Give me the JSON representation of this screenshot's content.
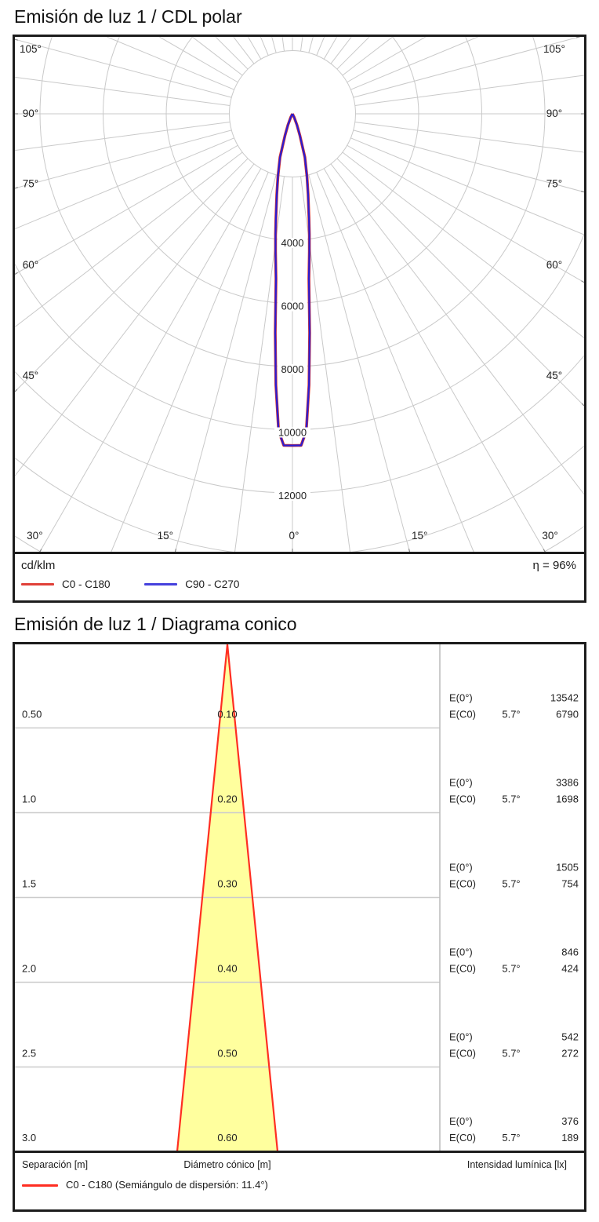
{
  "polar": {
    "title": "Emisión de luz 1 / CDL polar",
    "unit_label": "cd/klm",
    "efficiency": "η = 96%",
    "angle_ticks": [
      {
        "deg": 0,
        "label": "0°"
      },
      {
        "deg": 15,
        "label": "15°"
      },
      {
        "deg": 30,
        "label": "30°"
      },
      {
        "deg": 45,
        "label": "45°"
      },
      {
        "deg": 60,
        "label": "60°"
      },
      {
        "deg": 75,
        "label": "75°"
      },
      {
        "deg": 90,
        "label": "90°"
      },
      {
        "deg": 105,
        "label": "105°"
      }
    ],
    "ring_ticks": [
      {
        "value": 4000,
        "label": "4000"
      },
      {
        "value": 6000,
        "label": "6000"
      },
      {
        "value": 8000,
        "label": "8000"
      },
      {
        "value": 10000,
        "label": "10000"
      },
      {
        "value": 12000,
        "label": "12000"
      }
    ],
    "legend": [
      {
        "label": "C0 - C180",
        "color": "#e04038"
      },
      {
        "label": "C90 - C270",
        "color": "#4541dd"
      }
    ]
  },
  "cone": {
    "title": "Emisión de luz 1 / Diagrama conico",
    "footer": {
      "separation": "Separación [m]",
      "diameter": "Diámetro cónico [m]",
      "intensity": "Intensidad lumínica [lx]"
    },
    "legend_label": "C0 - C180 (Semiángulo de dispersión: 11.4°)",
    "legend_color": "#ff2e22",
    "e0_label": "E(0°)",
    "ec0_label": "E(C0)",
    "half_angle_label": "5.7°",
    "rows": [
      {
        "separation": "0.50",
        "diameter": "0.10",
        "e0": "13542",
        "ec0": "6790"
      },
      {
        "separation": "1.0",
        "diameter": "0.20",
        "e0": "3386",
        "ec0": "1698"
      },
      {
        "separation": "1.5",
        "diameter": "0.30",
        "e0": "1505",
        "ec0": "754"
      },
      {
        "separation": "2.0",
        "diameter": "0.40",
        "e0": "846",
        "ec0": "424"
      },
      {
        "separation": "2.5",
        "diameter": "0.50",
        "e0": "542",
        "ec0": "272"
      },
      {
        "separation": "3.0",
        "diameter": "0.60",
        "e0": "376",
        "ec0": "189"
      }
    ]
  },
  "chart_data": [
    {
      "type": "line",
      "polar": true,
      "title": "Emisión de luz 1 / CDL polar",
      "units": "cd/klm",
      "efficiency_percent": 96,
      "angle_axis_ticks_deg": [
        0,
        15,
        30,
        45,
        60,
        75,
        90,
        105
      ],
      "radial_axis_ticks": [
        2000,
        4000,
        6000,
        8000,
        10000,
        12000
      ],
      "radial_grid_step": 2000,
      "angle_grid_step_deg": 7.5,
      "series": [
        {
          "name": "C0 - C180",
          "color": "#d63434",
          "points_deg_cdklm": [
            [
              0,
              10500
            ],
            [
              1.5,
              10500
            ],
            [
              2.5,
              10050
            ],
            [
              3.5,
              8600
            ],
            [
              4.5,
              6950
            ],
            [
              5.7,
              5250
            ],
            [
              7,
              4400
            ],
            [
              8,
              3850
            ],
            [
              9,
              3350
            ],
            [
              11,
              2600
            ],
            [
              13,
              2050
            ],
            [
              16,
              1430
            ],
            [
              19,
              720
            ],
            [
              22,
              380
            ],
            [
              26,
              130
            ],
            [
              30,
              0
            ]
          ]
        },
        {
          "name": "C90 - C270",
          "color": "#2a1ed2",
          "points_deg_cdklm": [
            [
              0,
              10500
            ],
            [
              1.5,
              10500
            ],
            [
              2.5,
              10050
            ],
            [
              3.5,
              8600
            ],
            [
              4.5,
              6950
            ],
            [
              5.7,
              5250
            ],
            [
              7,
              4400
            ],
            [
              8,
              3850
            ],
            [
              9,
              3350
            ],
            [
              11,
              2600
            ],
            [
              13,
              2050
            ],
            [
              16,
              1430
            ],
            [
              19,
              720
            ],
            [
              22,
              380
            ],
            [
              26,
              130
            ],
            [
              30,
              0
            ]
          ]
        }
      ]
    },
    {
      "type": "cone-diagram",
      "title": "Emisión de luz 1 / Diagrama conico",
      "half_angle_deg": 5.7,
      "full_dispersion_semiangle_deg": 11.4,
      "columns": [
        "Separación [m]",
        "Diámetro cónico [m]",
        "Intensidad lumínica [lx]"
      ],
      "rows": [
        {
          "separation_m": 0.5,
          "diameter_m": 0.1,
          "E0_lx": 13542,
          "EC0_lx": 6790
        },
        {
          "separation_m": 1.0,
          "diameter_m": 0.2,
          "E0_lx": 3386,
          "EC0_lx": 1698
        },
        {
          "separation_m": 1.5,
          "diameter_m": 0.3,
          "E0_lx": 1505,
          "EC0_lx": 754
        },
        {
          "separation_m": 2.0,
          "diameter_m": 0.4,
          "E0_lx": 846,
          "EC0_lx": 424
        },
        {
          "separation_m": 2.5,
          "diameter_m": 0.5,
          "E0_lx": 542,
          "EC0_lx": 272
        },
        {
          "separation_m": 3.0,
          "diameter_m": 0.6,
          "E0_lx": 376,
          "EC0_lx": 189
        }
      ],
      "legend": "C0 - C180 (Semiángulo de dispersión: 11.4°)"
    }
  ]
}
